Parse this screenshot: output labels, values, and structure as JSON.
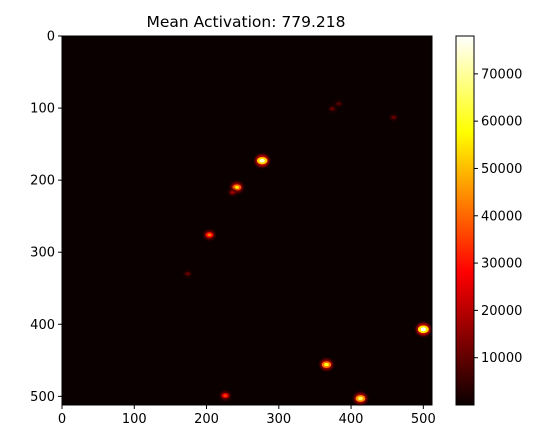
{
  "chart_data": {
    "type": "heatmap",
    "title": "Mean Activation: 779.218",
    "xlabel": "",
    "ylabel": "",
    "xlim": [
      0,
      512
    ],
    "ylim": [
      512,
      0
    ],
    "x_ticks": [
      0,
      100,
      200,
      300,
      400,
      500
    ],
    "y_ticks": [
      0,
      100,
      200,
      300,
      400,
      500
    ],
    "colormap": "hot",
    "background_color": "#0a0000",
    "colorbar": {
      "min": 0,
      "max": 78000,
      "ticks": [
        10000,
        20000,
        30000,
        40000,
        50000,
        60000,
        70000
      ],
      "tick_labels": [
        "10000",
        "20000",
        "30000",
        "40000",
        "50000",
        "60000",
        "70000"
      ]
    },
    "hotspots": [
      {
        "x": 277,
        "y": 173,
        "peak": 75000
      },
      {
        "x": 242,
        "y": 210,
        "peak": 55000
      },
      {
        "x": 236,
        "y": 217,
        "peak": 18000
      },
      {
        "x": 204,
        "y": 276,
        "peak": 42000
      },
      {
        "x": 500,
        "y": 407,
        "peak": 78000
      },
      {
        "x": 366,
        "y": 456,
        "peak": 60000
      },
      {
        "x": 413,
        "y": 503,
        "peak": 65000
      },
      {
        "x": 226,
        "y": 499,
        "peak": 35000
      },
      {
        "x": 374,
        "y": 101,
        "peak": 12000
      },
      {
        "x": 383,
        "y": 94,
        "peak": 10000
      },
      {
        "x": 459,
        "y": 113,
        "peak": 12000
      },
      {
        "x": 174,
        "y": 330,
        "peak": 12000
      }
    ]
  }
}
